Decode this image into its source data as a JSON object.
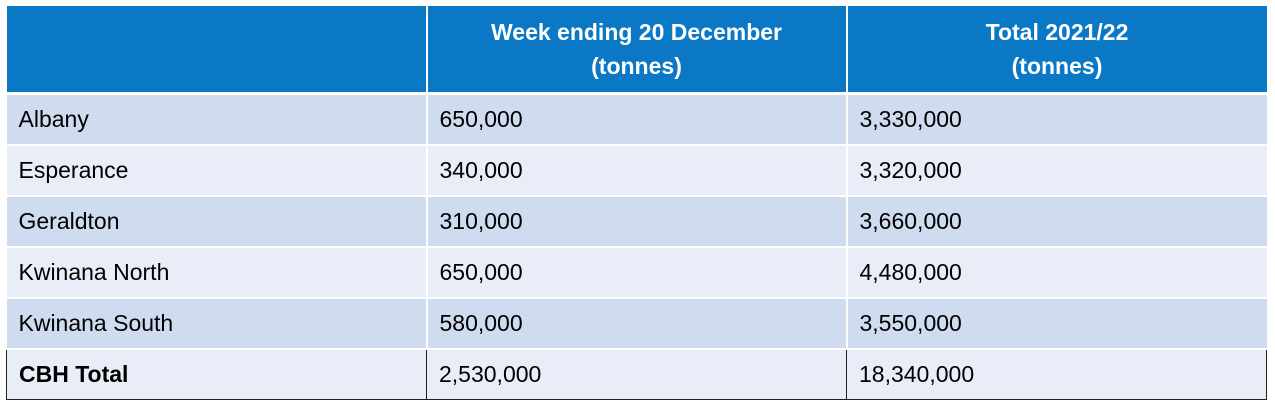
{
  "table": {
    "headers": [
      {
        "line1": "",
        "line2": ""
      },
      {
        "line1": "Week ending 20 December",
        "line2": "(tonnes)"
      },
      {
        "line1": "Total 2021/22",
        "line2": "(tonnes)"
      }
    ],
    "rows": [
      {
        "port": "Albany",
        "week": "650,000",
        "total": "3,330,000"
      },
      {
        "port": "Esperance",
        "week": "340,000",
        "total": "3,320,000"
      },
      {
        "port": "Geraldton",
        "week": "310,000",
        "total": "3,660,000"
      },
      {
        "port": "Kwinana North",
        "week": "650,000",
        "total": "4,480,000"
      },
      {
        "port": "Kwinana South",
        "week": "580,000",
        "total": "3,550,000"
      }
    ],
    "total_row": {
      "port": "CBH Total",
      "week": "2,530,000",
      "total": "18,340,000"
    }
  },
  "colors": {
    "header_bg": "#0B78C6",
    "row_dark": "#CFDBEE",
    "row_light": "#E8EDF7"
  }
}
